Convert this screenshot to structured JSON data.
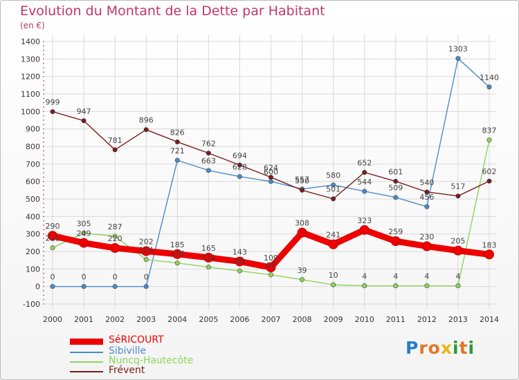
{
  "header": {
    "title": "Evolution du Montant de la Dette par Habitant",
    "subtitle": "(en €)"
  },
  "logo": {
    "text": "Proxiti",
    "colors": [
      "#2a7bc6",
      "#e27828",
      "#2a9a3a",
      "#e8b61a"
    ]
  },
  "chart_data": {
    "type": "line",
    "title": "Evolution du Montant de la Dette par Habitant",
    "subtitle": "(en €)",
    "x": [
      2000,
      2001,
      2002,
      2003,
      2004,
      2005,
      2006,
      2007,
      2008,
      2009,
      2010,
      2011,
      2012,
      2013,
      2014
    ],
    "ylim": [
      -100,
      1400
    ],
    "yticks": [
      -100,
      0,
      100,
      200,
      300,
      400,
      500,
      600,
      700,
      800,
      900,
      1000,
      1100,
      1200,
      1300,
      1400
    ],
    "grid": true,
    "legend_position": "bottom-left",
    "series": [
      {
        "name": "SéRICOURT",
        "color": "#ee0000",
        "values": [
          290,
          249,
          220,
          202,
          185,
          165,
          143,
          109,
          308,
          241,
          323,
          259,
          230,
          205,
          183
        ]
      },
      {
        "name": "Sibiville",
        "color": "#4a8bc8",
        "values": [
          0,
          0,
          0,
          0,
          721,
          663,
          628,
          600,
          557,
          580,
          544,
          509,
          456,
          1303,
          1140
        ]
      },
      {
        "name": "Nuncq-Hautecôte",
        "color": "#8ed45a",
        "values": [
          221,
          305,
          287,
          154,
          134,
          111,
          89,
          67,
          39,
          10,
          4,
          4,
          4,
          4,
          837
        ]
      },
      {
        "name": "Frévent",
        "color": "#7a1a1a",
        "values": [
          999,
          947,
          781,
          896,
          826,
          762,
          694,
          624,
          550,
          501,
          652,
          601,
          540,
          517,
          602
        ]
      }
    ]
  }
}
